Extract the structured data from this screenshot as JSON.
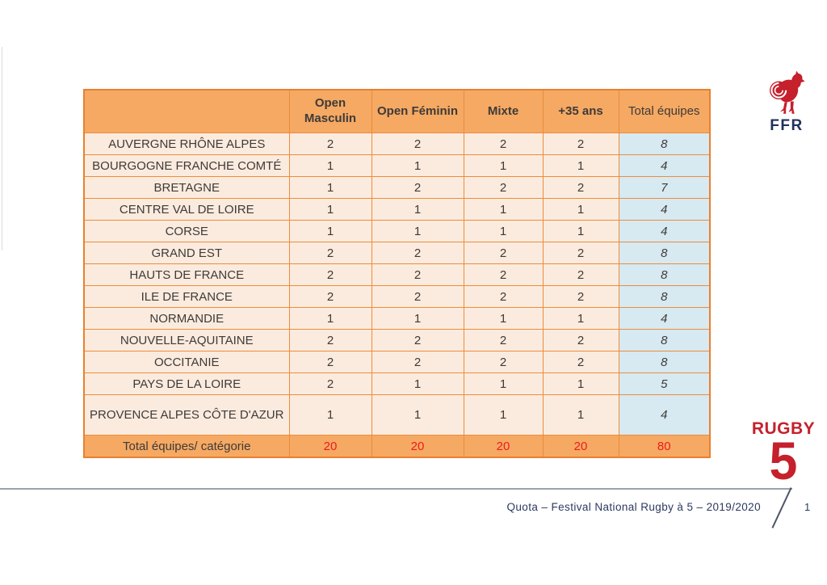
{
  "slide": {
    "footer": {
      "caption": "Quota – Festival National Rugby à 5 – 2019/2020",
      "page_number": "1"
    },
    "logos": {
      "ffr_label": "FFR",
      "rugby5_word": "RUGBY",
      "rugby5_number": "5"
    }
  },
  "colors": {
    "header_orange": "#F5A963",
    "row_peach": "#FBEBDE",
    "total_blue": "#D7E9F1",
    "border_orange": "#E8802F",
    "total_red": "#EE1C1C",
    "logo_red": "#C5202C",
    "navy": "#22305C"
  },
  "chart_data": {
    "type": "table",
    "columns": [
      "",
      "Open Masculin",
      "Open Féminin",
      "Mixte",
      "+35 ans",
      "Total équipes"
    ],
    "rows": [
      {
        "region": "AUVERGNE RHÔNE ALPES",
        "values": [
          2,
          2,
          2,
          2
        ],
        "total": 8
      },
      {
        "region": "BOURGOGNE FRANCHE COMTÉ",
        "values": [
          1,
          1,
          1,
          1
        ],
        "total": 4
      },
      {
        "region": "BRETAGNE",
        "values": [
          1,
          2,
          2,
          2
        ],
        "total": 7
      },
      {
        "region": "CENTRE VAL DE LOIRE",
        "values": [
          1,
          1,
          1,
          1
        ],
        "total": 4
      },
      {
        "region": "CORSE",
        "values": [
          1,
          1,
          1,
          1
        ],
        "total": 4
      },
      {
        "region": "GRAND EST",
        "values": [
          2,
          2,
          2,
          2
        ],
        "total": 8
      },
      {
        "region": "HAUTS DE FRANCE",
        "values": [
          2,
          2,
          2,
          2
        ],
        "total": 8
      },
      {
        "region": "ILE DE FRANCE",
        "values": [
          2,
          2,
          2,
          2
        ],
        "total": 8
      },
      {
        "region": "NORMANDIE",
        "values": [
          1,
          1,
          1,
          1
        ],
        "total": 4
      },
      {
        "region": "NOUVELLE-AQUITAINE",
        "values": [
          2,
          2,
          2,
          2
        ],
        "total": 8
      },
      {
        "region": "OCCITANIE",
        "values": [
          2,
          2,
          2,
          2
        ],
        "total": 8
      },
      {
        "region": "PAYS DE LA LOIRE",
        "values": [
          2,
          1,
          1,
          1
        ],
        "total": 5
      },
      {
        "region": "PROVENCE ALPES CÔTE D'AZUR",
        "values": [
          1,
          1,
          1,
          1
        ],
        "total": 4
      }
    ],
    "totals_row": {
      "label": "Total équipes/ catégorie",
      "values": [
        20,
        20,
        20,
        20
      ],
      "total": 80
    }
  }
}
